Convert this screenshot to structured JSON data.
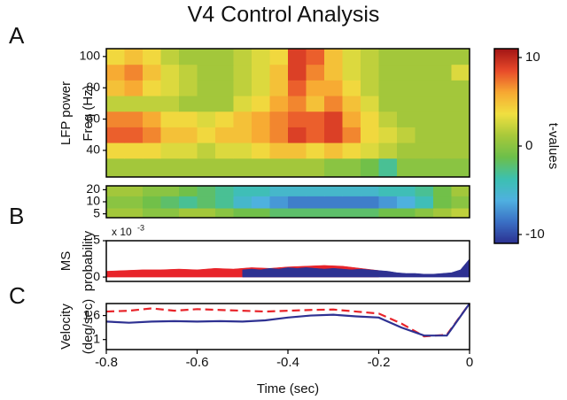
{
  "title": "V4 Control Analysis",
  "panel_labels": [
    "A",
    "B",
    "C"
  ],
  "chart_data": [
    {
      "type": "heatmap",
      "ylabel": [
        "LFP power",
        "Freq (Hz)"
      ],
      "xlim": [
        -0.8,
        0
      ],
      "ylim": [
        23,
        105
      ],
      "yticks": [
        40,
        60,
        80,
        100
      ],
      "xbins": [
        -0.8,
        -0.76,
        -0.72,
        -0.68,
        -0.64,
        -0.6,
        -0.56,
        -0.52,
        -0.48,
        -0.44,
        -0.4,
        -0.36,
        -0.32,
        -0.28,
        -0.24,
        -0.2,
        -0.16,
        -0.12,
        -0.08,
        -0.04,
        0
      ],
      "ybins": [
        23,
        35,
        45,
        55,
        65,
        75,
        85,
        95,
        105
      ],
      "z": [
        [
          1,
          1,
          1,
          1,
          1,
          1,
          1,
          1,
          1,
          1,
          1,
          1,
          0,
          0,
          -1,
          -3,
          0,
          0,
          0,
          0
        ],
        [
          4,
          4,
          4,
          3,
          3,
          2,
          3,
          3,
          4,
          5,
          5,
          4,
          5,
          4,
          3,
          2,
          1,
          1,
          1,
          1
        ],
        [
          8,
          8,
          7,
          5,
          5,
          4,
          5,
          5,
          6,
          7,
          9,
          8,
          9,
          7,
          4,
          3,
          2,
          1,
          1,
          1
        ],
        [
          7,
          7,
          6,
          4,
          4,
          3,
          4,
          5,
          6,
          7,
          8,
          8,
          9,
          6,
          4,
          2,
          1,
          1,
          1,
          1
        ],
        [
          2,
          2,
          2,
          2,
          1,
          1,
          1,
          3,
          4,
          6,
          7,
          5,
          7,
          5,
          3,
          1,
          1,
          1,
          1,
          1
        ],
        [
          5,
          6,
          4,
          3,
          2,
          1,
          1,
          2,
          3,
          5,
          8,
          6,
          6,
          4,
          2,
          1,
          1,
          1,
          1,
          1
        ],
        [
          6,
          7,
          5,
          3,
          2,
          1,
          1,
          2,
          3,
          5,
          9,
          7,
          5,
          3,
          2,
          1,
          1,
          1,
          1,
          3
        ],
        [
          4,
          5,
          4,
          2,
          1,
          1,
          1,
          2,
          3,
          4,
          9,
          8,
          5,
          3,
          2,
          1,
          1,
          1,
          1,
          1
        ]
      ],
      "colorbar": {
        "label": "t-values",
        "clim": [
          -11,
          11
        ],
        "ticks": [
          10,
          0,
          -10
        ],
        "colormap": [
          "#2b2f8f",
          "#3a6fc4",
          "#4fb0e0",
          "#3cc0b0",
          "#6cbf4a",
          "#a8c83a",
          "#f0e040",
          "#f7a832",
          "#e84a2a",
          "#a31515"
        ]
      }
    },
    {
      "type": "heatmap",
      "ylog": true,
      "xlim": [
        -0.8,
        0
      ],
      "ylim": [
        4,
        25
      ],
      "yticks": [
        5,
        10,
        20
      ],
      "xbins": [
        -0.8,
        -0.76,
        -0.72,
        -0.68,
        -0.64,
        -0.6,
        -0.56,
        -0.52,
        -0.48,
        -0.44,
        -0.4,
        -0.36,
        -0.32,
        -0.28,
        -0.24,
        -0.2,
        -0.16,
        -0.12,
        -0.08,
        -0.04,
        0
      ],
      "ybins": [
        4,
        7,
        14,
        25
      ],
      "z": [
        [
          1,
          1,
          0,
          0,
          1,
          1,
          0,
          -1,
          -1,
          -2,
          -2,
          -2,
          -2,
          -2,
          -2,
          -1,
          -1,
          0,
          1,
          2
        ],
        [
          0,
          0,
          -1,
          -2,
          -3,
          -2,
          -3,
          -5,
          -6,
          -7,
          -8,
          -8,
          -8,
          -8,
          -8,
          -7,
          -6,
          -4,
          -1,
          0
        ],
        [
          1,
          1,
          0,
          0,
          -1,
          -2,
          -3,
          -4,
          -4,
          -5,
          -5,
          -5,
          -5,
          -5,
          -5,
          -4,
          -4,
          -3,
          -1,
          1
        ]
      ]
    },
    {
      "type": "area",
      "ylabel": [
        "MS",
        "probability"
      ],
      "scale_label": "x 10",
      "scale_exponent": "-3",
      "xlim": [
        -0.8,
        0
      ],
      "ylim": [
        -0.6,
        5
      ],
      "yticks": [
        0,
        5
      ],
      "series": [
        {
          "color": "#e8242a",
          "x": [
            -0.8,
            -0.76,
            -0.72,
            -0.68,
            -0.64,
            -0.6,
            -0.56,
            -0.52,
            -0.48,
            -0.44,
            -0.4,
            -0.36,
            -0.32,
            -0.28,
            -0.24,
            -0.2
          ],
          "values": [
            0.8,
            0.9,
            1.0,
            1.0,
            1.1,
            1.0,
            1.2,
            1.1,
            1.3,
            1.2,
            1.4,
            1.5,
            1.6,
            1.5,
            1.2,
            0.9
          ]
        },
        {
          "color": "#2e3192",
          "x": [
            -0.5,
            -0.48,
            -0.46,
            -0.44,
            -0.42,
            -0.4,
            -0.38,
            -0.36,
            -0.34,
            -0.32,
            -0.3,
            -0.28,
            -0.26,
            -0.24,
            -0.22,
            -0.2,
            -0.18,
            -0.16,
            -0.14,
            -0.12,
            -0.1,
            -0.08,
            -0.06,
            -0.04,
            -0.02,
            0
          ],
          "values": [
            1.0,
            1.1,
            1.0,
            1.2,
            1.1,
            1.3,
            1.2,
            1.3,
            1.2,
            1.1,
            1.2,
            1.1,
            1.0,
            1.1,
            1.0,
            0.9,
            0.8,
            0.6,
            0.5,
            0.5,
            0.4,
            0.4,
            0.5,
            0.6,
            1.0,
            2.5
          ]
        }
      ]
    },
    {
      "type": "line",
      "ylabel": [
        "Velocity",
        "(deg/sec)"
      ],
      "xlabel": "Time (sec)",
      "xlim": [
        -0.8,
        0
      ],
      "xticks": [
        -0.8,
        -0.6,
        -0.4,
        -0.2,
        0
      ],
      "ylim": [
        0.75,
        1.9
      ],
      "yticks": [
        1,
        1.6
      ],
      "series": [
        {
          "color": "#e8242a",
          "dash": true,
          "x": [
            -0.8,
            -0.75,
            -0.7,
            -0.65,
            -0.6,
            -0.55,
            -0.5,
            -0.45,
            -0.4,
            -0.35,
            -0.3,
            -0.25,
            -0.2,
            -0.15,
            -0.1,
            -0.05,
            0
          ],
          "values": [
            1.7,
            1.72,
            1.78,
            1.72,
            1.76,
            1.74,
            1.72,
            1.7,
            1.72,
            1.74,
            1.75,
            1.7,
            1.65,
            1.4,
            1.08,
            1.12,
            1.9
          ]
        },
        {
          "color": "#2e3192",
          "dash": false,
          "x": [
            -0.8,
            -0.75,
            -0.7,
            -0.65,
            -0.6,
            -0.55,
            -0.5,
            -0.45,
            -0.4,
            -0.35,
            -0.3,
            -0.25,
            -0.2,
            -0.15,
            -0.1,
            -0.05,
            0
          ],
          "values": [
            1.45,
            1.42,
            1.45,
            1.46,
            1.45,
            1.46,
            1.45,
            1.48,
            1.55,
            1.6,
            1.62,
            1.58,
            1.55,
            1.3,
            1.1,
            1.1,
            1.9
          ]
        }
      ]
    }
  ]
}
